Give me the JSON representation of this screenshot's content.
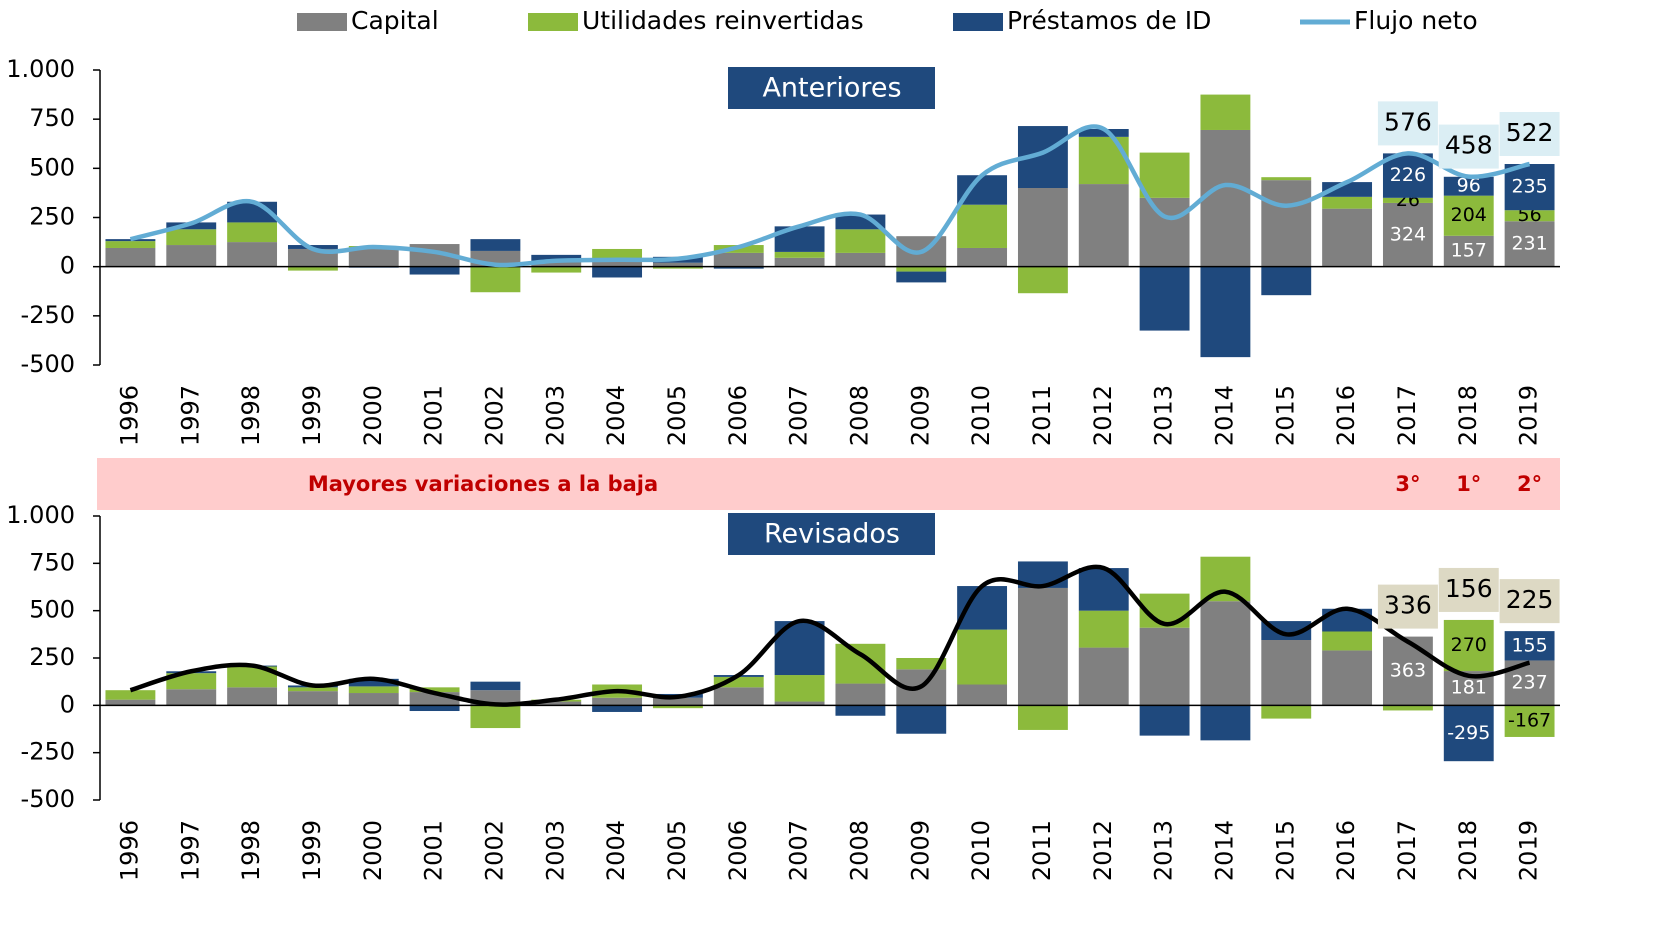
{
  "chart_data": [
    {
      "type": "bar",
      "stacked": true,
      "title": "Anteriores",
      "categories": [
        "1996",
        "1997",
        "1998",
        "1999",
        "2000",
        "2001",
        "2002",
        "2003",
        "2004",
        "2005",
        "2006",
        "2007",
        "2008",
        "2009",
        "2010",
        "2011",
        "2012",
        "2013",
        "2014",
        "2015",
        "2016",
        "2017",
        "2018",
        "2019"
      ],
      "ylim": [
        -500,
        1000
      ],
      "yticks": [
        {
          "value": 1000,
          "label": "1.000"
        },
        750,
        500,
        250,
        0,
        -250,
        -500
      ],
      "label_box_color": "#dbeef4",
      "series": [
        {
          "name": "Capital",
          "color": "#808080",
          "values": [
            95,
            110,
            125,
            90,
            95,
            115,
            80,
            30,
            30,
            20,
            70,
            45,
            70,
            155,
            95,
            400,
            420,
            350,
            695,
            440,
            295,
            324,
            157,
            231
          ],
          "value_labels": [
            null,
            null,
            null,
            null,
            null,
            null,
            null,
            null,
            null,
            null,
            null,
            null,
            null,
            null,
            null,
            null,
            null,
            null,
            null,
            null,
            null,
            "324",
            "157",
            "231"
          ]
        },
        {
          "name": "Utilidades reinvertidas",
          "color": "#8cba3c",
          "values": [
            35,
            80,
            100,
            -20,
            10,
            0,
            -130,
            -30,
            60,
            -10,
            40,
            30,
            120,
            -25,
            220,
            -135,
            240,
            230,
            180,
            15,
            60,
            26,
            204,
            56
          ],
          "value_labels": [
            null,
            null,
            null,
            null,
            null,
            null,
            null,
            null,
            null,
            null,
            null,
            null,
            null,
            null,
            null,
            null,
            null,
            null,
            null,
            null,
            null,
            "26",
            "204",
            "56"
          ]
        },
        {
          "name": "Préstamos de ID",
          "color": "#1f497d",
          "values": [
            10,
            35,
            105,
            20,
            -5,
            -40,
            60,
            30,
            -55,
            30,
            -10,
            130,
            75,
            -55,
            150,
            315,
            40,
            -325,
            -460,
            -145,
            75,
            226,
            96,
            235
          ],
          "value_labels": [
            null,
            null,
            null,
            null,
            null,
            null,
            null,
            null,
            null,
            null,
            null,
            null,
            null,
            null,
            null,
            null,
            null,
            null,
            null,
            null,
            null,
            "226",
            "96",
            "235"
          ]
        },
        {
          "name": "Flujo neto",
          "type": "line",
          "color": "#62acd4",
          "values": [
            140,
            220,
            330,
            90,
            100,
            75,
            10,
            30,
            35,
            40,
            100,
            205,
            265,
            75,
            465,
            580,
            700,
            255,
            415,
            310,
            430,
            576,
            458,
            522
          ],
          "value_labels": [
            null,
            null,
            null,
            null,
            null,
            null,
            null,
            null,
            null,
            null,
            null,
            null,
            null,
            null,
            null,
            null,
            null,
            null,
            null,
            null,
            null,
            "576",
            "458",
            "522"
          ]
        }
      ]
    },
    {
      "type": "bar",
      "stacked": true,
      "title": "Revisados",
      "categories": [
        "1996",
        "1997",
        "1998",
        "1999",
        "2000",
        "2001",
        "2002",
        "2003",
        "2004",
        "2005",
        "2006",
        "2007",
        "2008",
        "2009",
        "2010",
        "2011",
        "2012",
        "2013",
        "2014",
        "2015",
        "2016",
        "2017",
        "2018",
        "2019"
      ],
      "ylim": [
        -500,
        1000
      ],
      "yticks": [
        {
          "value": 1000,
          "label": "1.000"
        },
        750,
        500,
        250,
        0,
        -250,
        -500
      ],
      "label_box_color": "#ddd9c4",
      "series": [
        {
          "color": "#808080",
          "values": [
            30,
            85,
            95,
            75,
            65,
            70,
            80,
            20,
            40,
            40,
            95,
            20,
            115,
            190,
            110,
            620,
            305,
            410,
            550,
            345,
            290,
            363,
            181,
            237
          ],
          "value_labels": [
            null,
            null,
            null,
            null,
            null,
            null,
            null,
            null,
            null,
            null,
            null,
            null,
            null,
            null,
            null,
            null,
            null,
            null,
            null,
            null,
            null,
            "363",
            "181",
            "237"
          ]
        },
        {
          "color": "#8cba3c",
          "values": [
            50,
            85,
            110,
            20,
            35,
            25,
            -120,
            10,
            70,
            -15,
            55,
            140,
            210,
            60,
            290,
            -130,
            195,
            180,
            235,
            -70,
            100,
            -27,
            270,
            -167
          ],
          "value_labels": [
            null,
            null,
            null,
            null,
            null,
            null,
            null,
            null,
            null,
            null,
            null,
            null,
            null,
            null,
            null,
            null,
            null,
            null,
            null,
            null,
            null,
            null,
            "270",
            "-167"
          ]
        },
        {
          "color": "#1f497d",
          "values": [
            0,
            10,
            5,
            10,
            40,
            -30,
            45,
            0,
            -35,
            20,
            10,
            285,
            -55,
            -150,
            230,
            140,
            225,
            -160,
            -185,
            100,
            120,
            0,
            -295,
            155
          ],
          "value_labels": [
            null,
            null,
            null,
            null,
            null,
            null,
            null,
            null,
            null,
            null,
            null,
            null,
            null,
            null,
            null,
            null,
            null,
            null,
            null,
            null,
            null,
            null,
            "-295",
            "155"
          ]
        },
        {
          "type": "line",
          "color": "#000000",
          "values": [
            80,
            180,
            210,
            105,
            140,
            65,
            5,
            30,
            75,
            45,
            160,
            445,
            270,
            100,
            630,
            630,
            725,
            430,
            600,
            375,
            510,
            336,
            156,
            225
          ],
          "value_labels": [
            null,
            null,
            null,
            null,
            null,
            null,
            null,
            null,
            null,
            null,
            null,
            null,
            null,
            null,
            null,
            null,
            null,
            null,
            null,
            null,
            null,
            "336",
            "156",
            "225"
          ]
        }
      ]
    }
  ],
  "band": {
    "text": "Mayores variaciones a la baja",
    "color": "#ffcccc",
    "text_color": "#c00000",
    "rank_labels": [
      null,
      null,
      null,
      null,
      null,
      null,
      null,
      null,
      null,
      null,
      null,
      null,
      null,
      null,
      null,
      null,
      null,
      null,
      null,
      null,
      null,
      "3°",
      "1°",
      "2°"
    ]
  }
}
